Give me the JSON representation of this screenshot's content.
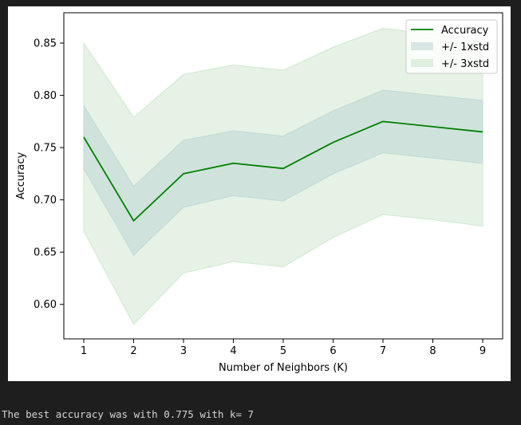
{
  "chart_data": {
    "type": "line",
    "title": "",
    "xlabel": "Number of Neighbors (K)",
    "ylabel": "Accuracy",
    "x": [
      1,
      2,
      3,
      4,
      5,
      6,
      7,
      8,
      9
    ],
    "xlim": [
      0.6,
      9.4
    ],
    "ylim": [
      0.567,
      0.879
    ],
    "xticks": [
      "1",
      "2",
      "3",
      "4",
      "5",
      "6",
      "7",
      "8",
      "9"
    ],
    "yticks": [
      "0.60",
      "0.65",
      "0.70",
      "0.75",
      "0.80",
      "0.85"
    ],
    "grid": false,
    "legend_position": "top-right",
    "series": [
      {
        "name": "Accuracy",
        "values": [
          0.76,
          0.68,
          0.725,
          0.735,
          0.73,
          0.755,
          0.775,
          0.77,
          0.765
        ],
        "color": "#008000"
      }
    ],
    "bands": [
      {
        "name": "+/- 3xstd",
        "lower": [
          0.67,
          0.581,
          0.63,
          0.641,
          0.636,
          0.664,
          0.686,
          0.681,
          0.675
        ],
        "upper": [
          0.85,
          0.779,
          0.82,
          0.829,
          0.824,
          0.846,
          0.864,
          0.859,
          0.855
        ],
        "color": "#cfe8cf"
      },
      {
        "name": "+/- 1xstd",
        "lower": [
          0.73,
          0.647,
          0.693,
          0.704,
          0.699,
          0.725,
          0.745,
          0.74,
          0.735
        ],
        "upper": [
          0.79,
          0.713,
          0.757,
          0.766,
          0.761,
          0.785,
          0.805,
          0.8,
          0.795
        ],
        "color": "#bfd9d6"
      }
    ]
  },
  "console": {
    "output": "The best accuracy was with 0.775 with k= 7"
  }
}
